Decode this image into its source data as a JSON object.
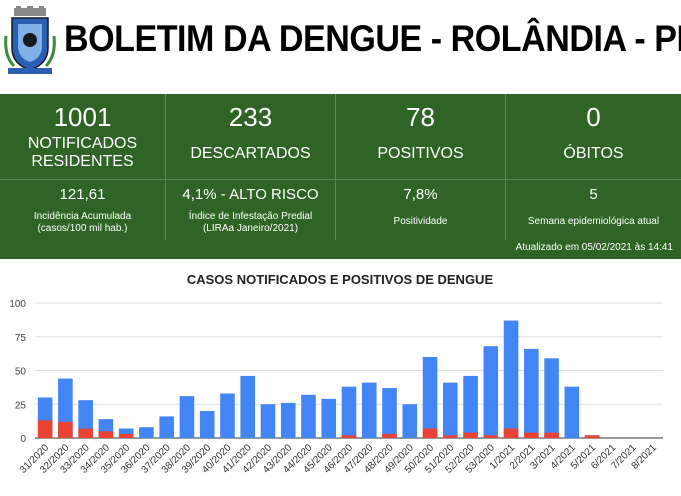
{
  "header": {
    "title": "BOLETIM DA DENGUE - ROLÂNDIA - PR",
    "crest_icon": "city-coat-of-arms-icon"
  },
  "stats": {
    "top": [
      {
        "value": "1001",
        "label": "NOTIFICADOS\nRESIDENTES"
      },
      {
        "value": "233",
        "label": "DESCARTADOS"
      },
      {
        "value": "78",
        "label": "POSITIVOS"
      },
      {
        "value": "0",
        "label": "ÓBITOS"
      }
    ],
    "bottom": [
      {
        "value": "121,61",
        "label": "Incidência Acumulada\n(casos/100 mil hab.)"
      },
      {
        "value": "4,1% - ALTO RISCO",
        "label": "Índice de Infestação Predial\n(LIRAa Janeiro/2021)"
      },
      {
        "value": "7,8%",
        "label": "Positividade"
      },
      {
        "value": "5",
        "label": "Semana epidemiológica atual"
      }
    ],
    "updated": "Atualizado em 05/02/2021 às 14:41",
    "panel_color": "#2f6426"
  },
  "chart_data": {
    "type": "bar",
    "title": "CASOS NOTIFICADOS E POSITIVOS DE DENGUE",
    "categories": [
      "31/2020",
      "32/2020",
      "33/2020",
      "34/2020",
      "35/2020",
      "36/2020",
      "37/2020",
      "38/2020",
      "39/2020",
      "40/2020",
      "41/2020",
      "42/2020",
      "43/2020",
      "44/2020",
      "45/2020",
      "46/2020",
      "47/2020",
      "48/2020",
      "49/2020",
      "50/2020",
      "51/2020",
      "52/2020",
      "53/2020",
      "1/2021",
      "2/2021",
      "3/2021",
      "4/2021",
      "5/2021",
      "6/2021",
      "7/2021",
      "8/2021"
    ],
    "series": [
      {
        "color": "#4285f4",
        "values": [
          30,
          44,
          28,
          14,
          7,
          8,
          16,
          31,
          20,
          33,
          46,
          25,
          26,
          32,
          29,
          38,
          41,
          37,
          25,
          60,
          41,
          46,
          68,
          87,
          66,
          59,
          38,
          2,
          0,
          0,
          0
        ]
      },
      {
        "color": "#ea4335",
        "values": [
          13,
          12,
          7,
          5,
          3,
          0,
          0,
          0,
          0,
          0,
          0,
          0,
          0,
          0,
          0,
          2,
          0,
          3,
          0,
          7,
          2,
          4,
          2,
          7,
          4,
          4,
          0,
          2,
          0,
          0,
          0
        ]
      }
    ],
    "yticks": [
      "0",
      "25",
      "50",
      "75",
      "100"
    ],
    "ylim": [
      0,
      100
    ],
    "grid": true
  }
}
